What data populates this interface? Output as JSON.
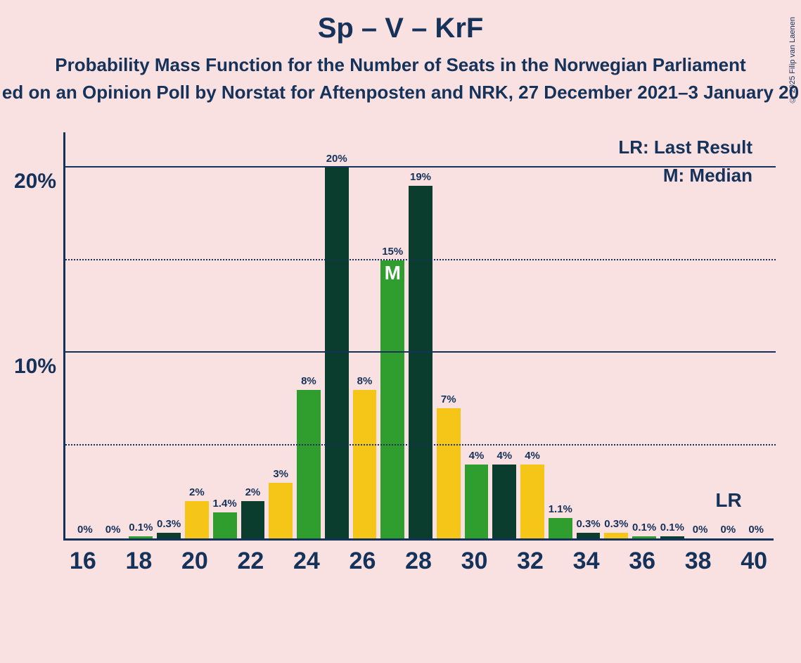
{
  "title": "Sp – V – KrF",
  "subtitle1": "Probability Mass Function for the Number of Seats in the Norwegian Parliament",
  "subtitle2": "ed on an Opinion Poll by Norstat for Aftenposten and NRK, 27 December 2021–3 January 20",
  "copyright": "© 2025 Filip van Laenen",
  "legend": {
    "lr": "LR: Last Result",
    "m": "M: Median"
  },
  "chart": {
    "type": "bar",
    "background_color": "#fae1e1",
    "axis_color": "#15325a",
    "text_color": "#15325a",
    "ylim_max_pct": 22,
    "y_major_ticks": [
      10,
      20
    ],
    "y_minor_ticks": [
      5,
      15
    ],
    "y_tick_labels": {
      "10": "10%",
      "20": "20%"
    },
    "x_ticks": [
      16,
      18,
      20,
      22,
      24,
      26,
      28,
      30,
      32,
      34,
      36,
      38,
      40
    ],
    "x_min": 15.3,
    "x_max": 40.7,
    "bar_width_units": 0.85,
    "colors": {
      "green": "#2f9e2f",
      "dark": "#0b3d2e",
      "yellow": "#f5c518"
    },
    "median_seat": 27,
    "lr_seat": 39,
    "bars": [
      {
        "seat": 16,
        "label": "0%",
        "value_pct": 0.0,
        "color": "green"
      },
      {
        "seat": 17,
        "label": "0%",
        "value_pct": 0.0,
        "color": "dark"
      },
      {
        "seat": 18,
        "label": "0.1%",
        "value_pct": 0.1,
        "color": "green"
      },
      {
        "seat": 19,
        "label": "0.3%",
        "value_pct": 0.3,
        "color": "dark"
      },
      {
        "seat": 20,
        "label": "2%",
        "value_pct": 2.0,
        "color": "yellow"
      },
      {
        "seat": 21,
        "label": "1.4%",
        "value_pct": 1.4,
        "color": "green"
      },
      {
        "seat": 22,
        "label": "2%",
        "value_pct": 2.0,
        "color": "dark"
      },
      {
        "seat": 23,
        "label": "3%",
        "value_pct": 3.0,
        "color": "yellow"
      },
      {
        "seat": 24,
        "label": "8%",
        "value_pct": 8.0,
        "color": "green"
      },
      {
        "seat": 25,
        "label": "20%",
        "value_pct": 20.0,
        "color": "dark"
      },
      {
        "seat": 26,
        "label": "8%",
        "value_pct": 8.0,
        "color": "yellow"
      },
      {
        "seat": 27,
        "label": "15%",
        "value_pct": 15.0,
        "color": "green"
      },
      {
        "seat": 28,
        "label": "19%",
        "value_pct": 19.0,
        "color": "dark"
      },
      {
        "seat": 29,
        "label": "7%",
        "value_pct": 7.0,
        "color": "yellow"
      },
      {
        "seat": 30,
        "label": "4%",
        "value_pct": 4.0,
        "color": "green"
      },
      {
        "seat": 31,
        "label": "4%",
        "value_pct": 4.0,
        "color": "dark"
      },
      {
        "seat": 32,
        "label": "4%",
        "value_pct": 4.0,
        "color": "yellow"
      },
      {
        "seat": 33,
        "label": "1.1%",
        "value_pct": 1.1,
        "color": "green"
      },
      {
        "seat": 34,
        "label": "0.3%",
        "value_pct": 0.3,
        "color": "dark"
      },
      {
        "seat": 35,
        "label": "0.3%",
        "value_pct": 0.3,
        "color": "yellow"
      },
      {
        "seat": 36,
        "label": "0.1%",
        "value_pct": 0.1,
        "color": "green"
      },
      {
        "seat": 37,
        "label": "0.1%",
        "value_pct": 0.1,
        "color": "dark"
      },
      {
        "seat": 38,
        "label": "0%",
        "value_pct": 0.0,
        "color": "yellow"
      },
      {
        "seat": 39,
        "label": "0%",
        "value_pct": 0.0,
        "color": "green"
      },
      {
        "seat": 40,
        "label": "0%",
        "value_pct": 0.0,
        "color": "dark"
      }
    ]
  }
}
